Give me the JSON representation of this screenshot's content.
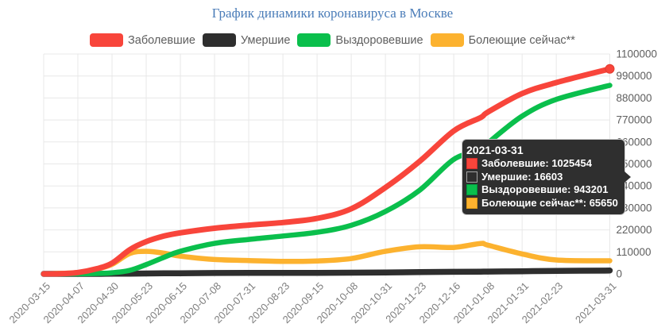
{
  "title": "График динамики коронавируса в Москве",
  "legend": {
    "items": [
      {
        "key": "cases",
        "label": "Заболевшие",
        "color": "#f8453b"
      },
      {
        "key": "deaths",
        "label": "Умершие",
        "color": "#2e2e2e"
      },
      {
        "key": "recovered",
        "label": "Выздоровевшие",
        "color": "#0abf4c"
      },
      {
        "key": "active",
        "label": "Болеющие сейчас**",
        "color": "#fcb22f"
      }
    ]
  },
  "tooltip": {
    "date": "2021-03-31",
    "rows": [
      {
        "label": "Заболевшие",
        "value": "1025454",
        "color": "#f8453b",
        "border": "#d32f2f"
      },
      {
        "label": "Умершие",
        "value": "16603",
        "color": "#2e2e2e",
        "border": "#a6a6a6"
      },
      {
        "label": "Выздоровевшие",
        "value": "943201",
        "color": "#0abf4c",
        "border": "#00993d"
      },
      {
        "label": "Болеющие сейчас**",
        "value": "65650",
        "color": "#fcb22f",
        "border": "#dd9a16"
      }
    ]
  },
  "chart_data": {
    "type": "line",
    "title": "График динамики коронавируса в Москве",
    "xlabel": "",
    "ylabel": "",
    "x_range": [
      "2020-03-15",
      "2021-03-31"
    ],
    "ylim": [
      0,
      1100000
    ],
    "y_ticks": [
      0,
      110000,
      220000,
      330000,
      440000,
      550000,
      660000,
      770000,
      880000,
      990000,
      1100000
    ],
    "x_tick_labels": [
      "2020-03-15",
      "2020-04-07",
      "2020-04-30",
      "2020-05-23",
      "2020-06-15",
      "2020-07-08",
      "2020-07-31",
      "2020-08-23",
      "2020-09-15",
      "2020-10-08",
      "2020-10-31",
      "2020-11-23",
      "2020-12-16",
      "2021-01-08",
      "2021-01-31",
      "2021-02-23",
      "2021-03-31"
    ],
    "grid": true,
    "legend_position": "top",
    "hover_point": {
      "date": "2021-03-31",
      "cases": 1025454,
      "deaths": 16603,
      "recovered": 943201,
      "active": 65650
    },
    "series": [
      {
        "key": "cases",
        "name": "Заболевшие",
        "color": "#f8453b",
        "data": [
          [
            "2020-03-15",
            53
          ],
          [
            "2020-03-25",
            300
          ],
          [
            "2020-04-07",
            6698
          ],
          [
            "2020-04-20",
            26350
          ],
          [
            "2020-04-30",
            53739
          ],
          [
            "2020-05-12",
            121301
          ],
          [
            "2020-05-23",
            161397
          ],
          [
            "2020-06-04",
            189226
          ],
          [
            "2020-06-15",
            205193
          ],
          [
            "2020-07-08",
            228322
          ],
          [
            "2020-07-31",
            243823
          ],
          [
            "2020-08-23",
            257107
          ],
          [
            "2020-09-15",
            277597
          ],
          [
            "2020-10-08",
            325716
          ],
          [
            "2020-10-31",
            432091
          ],
          [
            "2020-11-23",
            562517
          ],
          [
            "2020-12-16",
            715106
          ],
          [
            "2021-01-03",
            781647
          ],
          [
            "2021-01-08",
            809628
          ],
          [
            "2021-01-31",
            902163
          ],
          [
            "2021-02-23",
            957037
          ],
          [
            "2021-03-31",
            1025454
          ]
        ]
      },
      {
        "key": "deaths",
        "name": "Умершие",
        "color": "#2e2e2e",
        "data": [
          [
            "2020-03-15",
            0
          ],
          [
            "2020-04-07",
            43
          ],
          [
            "2020-04-20",
            176
          ],
          [
            "2020-04-30",
            611
          ],
          [
            "2020-05-12",
            1232
          ],
          [
            "2020-05-23",
            1993
          ],
          [
            "2020-06-04",
            2703
          ],
          [
            "2020-06-15",
            3315
          ],
          [
            "2020-07-08",
            4174
          ],
          [
            "2020-07-31",
            4570
          ],
          [
            "2020-08-23",
            4917
          ],
          [
            "2020-09-15",
            5235
          ],
          [
            "2020-10-08",
            5986
          ],
          [
            "2020-10-31",
            7095
          ],
          [
            "2020-11-23",
            8855
          ],
          [
            "2020-12-16",
            10296
          ],
          [
            "2021-01-03",
            11221
          ],
          [
            "2021-01-08",
            11634
          ],
          [
            "2021-01-31",
            13244
          ],
          [
            "2021-02-23",
            14973
          ],
          [
            "2021-03-31",
            16603
          ]
        ]
      },
      {
        "key": "recovered",
        "name": "Выздоровевшие",
        "color": "#0abf4c",
        "data": [
          [
            "2020-03-15",
            0
          ],
          [
            "2020-04-07",
            410
          ],
          [
            "2020-04-20",
            1838
          ],
          [
            "2020-04-30",
            5439
          ],
          [
            "2020-05-12",
            17744
          ],
          [
            "2020-05-23",
            46462
          ],
          [
            "2020-06-04",
            83139
          ],
          [
            "2020-06-15",
            113299
          ],
          [
            "2020-07-08",
            152395
          ],
          [
            "2020-07-31",
            172489
          ],
          [
            "2020-08-23",
            189536
          ],
          [
            "2020-09-15",
            208050
          ],
          [
            "2020-10-08",
            242947
          ],
          [
            "2020-10-31",
            312104
          ],
          [
            "2020-11-23",
            418319
          ],
          [
            "2020-12-16",
            572539
          ],
          [
            "2021-01-03",
            618249
          ],
          [
            "2021-01-08",
            654651
          ],
          [
            "2021-01-31",
            789047
          ],
          [
            "2021-02-23",
            872718
          ],
          [
            "2021-03-31",
            943201
          ]
        ]
      },
      {
        "key": "active",
        "name": "Болеющие сейчас**",
        "color": "#fcb22f",
        "data": [
          [
            "2020-03-15",
            53
          ],
          [
            "2020-04-07",
            6245
          ],
          [
            "2020-04-20",
            24336
          ],
          [
            "2020-04-30",
            47689
          ],
          [
            "2020-05-12",
            102325
          ],
          [
            "2020-05-23",
            112942
          ],
          [
            "2020-06-04",
            103384
          ],
          [
            "2020-06-15",
            88579
          ],
          [
            "2020-07-08",
            71753
          ],
          [
            "2020-07-31",
            66764
          ],
          [
            "2020-08-23",
            62654
          ],
          [
            "2020-09-15",
            64312
          ],
          [
            "2020-10-08",
            76783
          ],
          [
            "2020-10-31",
            112892
          ],
          [
            "2020-11-23",
            135343
          ],
          [
            "2020-12-16",
            132271
          ],
          [
            "2021-01-03",
            152177
          ],
          [
            "2021-01-08",
            143343
          ],
          [
            "2021-01-31",
            99872
          ],
          [
            "2021-02-23",
            69346
          ],
          [
            "2021-03-31",
            65650
          ]
        ]
      }
    ]
  }
}
